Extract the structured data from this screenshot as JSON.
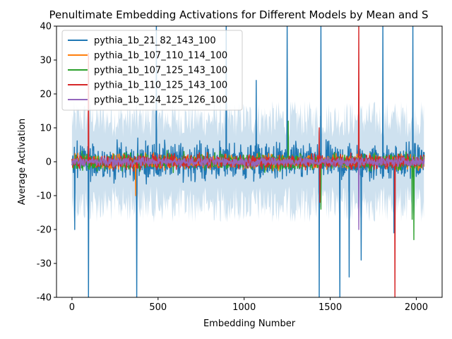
{
  "chart_data": {
    "type": "line",
    "title": "Penultimate Embedding Activations for Different Models by Mean and S",
    "xlabel": "Embedding Number",
    "ylabel": "Average Activation",
    "xlim": [
      -90,
      2150
    ],
    "ylim": [
      -40,
      40
    ],
    "xticks": [
      0,
      500,
      1000,
      1500,
      2000
    ],
    "yticks": [
      -40,
      -30,
      -20,
      -10,
      0,
      10,
      20,
      30,
      40
    ],
    "grid": false,
    "legend_position": "top-left",
    "x_range": [
      0,
      2047
    ],
    "band": {
      "series": "pythia_1b_21_82_143_100",
      "spread_estimate": 12,
      "color": "#1f77b4"
    },
    "series": [
      {
        "name": "pythia_1b_21_82_143_100",
        "color": "#1f77b4",
        "typical_range": [
          -8,
          8
        ],
        "spikes": [
          {
            "x": 95,
            "y": -42
          },
          {
            "x": 375,
            "y": -42
          },
          {
            "x": 490,
            "y": 42
          },
          {
            "x": 895,
            "y": 42
          },
          {
            "x": 1250,
            "y": 42
          },
          {
            "x": 1435,
            "y": -42
          },
          {
            "x": 1445,
            "y": 42
          },
          {
            "x": 1555,
            "y": -42
          },
          {
            "x": 1610,
            "y": -34
          },
          {
            "x": 1680,
            "y": -29
          },
          {
            "x": 1805,
            "y": 42
          },
          {
            "x": 1980,
            "y": 42
          },
          {
            "x": 1070,
            "y": 24
          },
          {
            "x": 15,
            "y": -20
          },
          {
            "x": 1870,
            "y": -21
          }
        ]
      },
      {
        "name": "pythia_1b_107_110_114_100",
        "color": "#ff7f0e",
        "typical_range": [
          -3,
          3
        ],
        "spikes": [
          {
            "x": 370,
            "y": -10
          }
        ]
      },
      {
        "name": "pythia_1b_107_125_143_100",
        "color": "#2ca02c",
        "typical_range": [
          -3.5,
          3.5
        ],
        "spikes": [
          {
            "x": 1255,
            "y": 12
          },
          {
            "x": 1445,
            "y": -14
          },
          {
            "x": 1985,
            "y": -23
          },
          {
            "x": 1975,
            "y": -17
          }
        ]
      },
      {
        "name": "pythia_1b_110_125_143_100",
        "color": "#d62728",
        "typical_range": [
          -3,
          3
        ],
        "spikes": [
          {
            "x": 1665,
            "y": 42
          },
          {
            "x": 1875,
            "y": -42
          },
          {
            "x": 95,
            "y": 32
          },
          {
            "x": 1435,
            "y": 10
          },
          {
            "x": 1440,
            "y": -12
          }
        ]
      },
      {
        "name": "pythia_1b_124_125_126_100",
        "color": "#9467bd",
        "typical_range": [
          -2,
          2
        ],
        "spikes": [
          {
            "x": 1665,
            "y": -20
          }
        ]
      }
    ]
  }
}
